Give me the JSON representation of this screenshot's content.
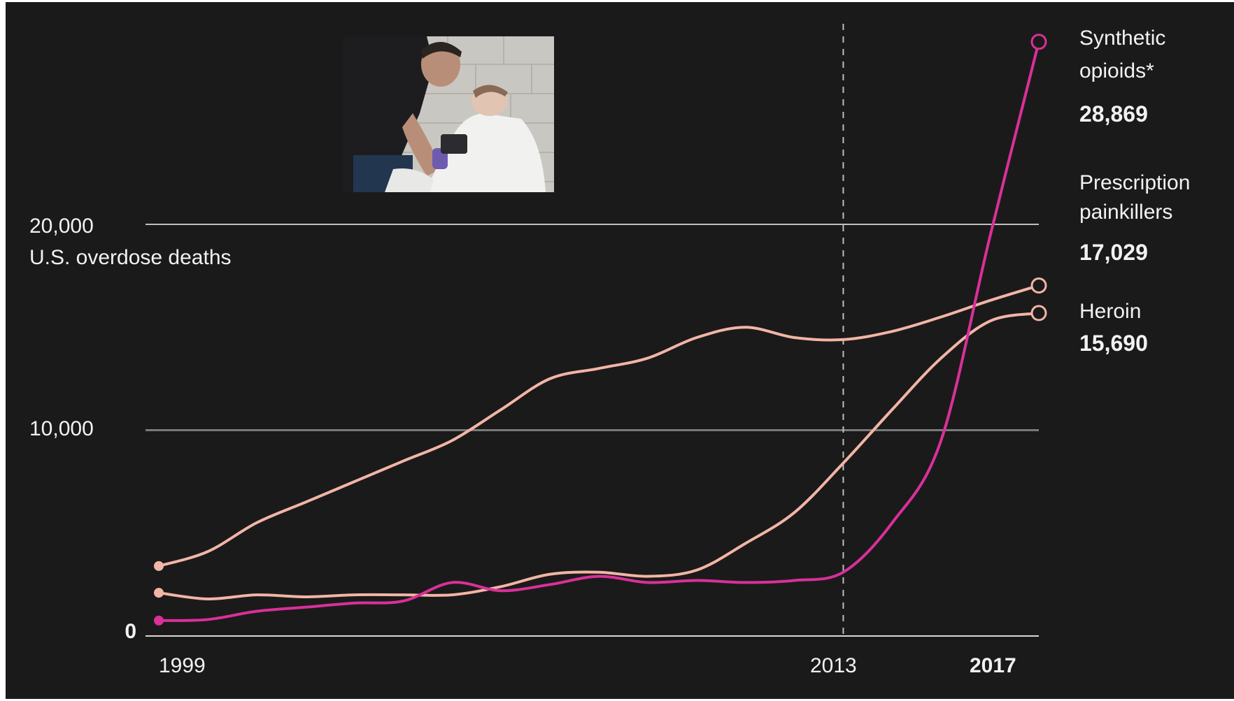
{
  "chart_data": {
    "type": "line",
    "title": "",
    "ylabel": "U.S. overdose deaths",
    "xlim": [
      1999,
      2017
    ],
    "ylim": [
      0,
      20000
    ],
    "y_ticks": [
      {
        "value": 0,
        "label": "0"
      },
      {
        "value": 10000,
        "label": "10,000"
      },
      {
        "value": 20000,
        "label": "20,000"
      }
    ],
    "x_ticks": [
      {
        "value": 1999,
        "label": "1999",
        "bold": false
      },
      {
        "value": 2013,
        "label": "2013",
        "bold": false
      },
      {
        "value": 2017,
        "label": "2017",
        "bold": true
      }
    ],
    "marker_year": 2013,
    "grid": true,
    "x": [
      1999,
      2000,
      2001,
      2002,
      2003,
      2004,
      2005,
      2006,
      2007,
      2008,
      2009,
      2010,
      2011,
      2012,
      2013,
      2014,
      2015,
      2016,
      2017
    ],
    "series": [
      {
        "name_lines": [
          "Prescription",
          "painkillers"
        ],
        "end_value": "17,029",
        "color": "#f2b5a6",
        "values": [
          3400,
          4100,
          5500,
          6500,
          7500,
          8500,
          9500,
          11000,
          12500,
          13000,
          13500,
          14500,
          15000,
          14500,
          14400,
          14800,
          15500,
          16300,
          17029
        ]
      },
      {
        "name_lines": [
          "Heroin"
        ],
        "end_value": "15,690",
        "color": "#f2b5a6",
        "values": [
          2100,
          1800,
          2000,
          1900,
          2000,
          2000,
          2000,
          2400,
          3000,
          3100,
          2900,
          3200,
          4500,
          6000,
          8400,
          11000,
          13500,
          15300,
          15690
        ]
      },
      {
        "name_lines": [
          "Synthetic",
          "opioids*"
        ],
        "end_value": "28,869",
        "color": "#d9309a",
        "values": [
          750,
          800,
          1200,
          1400,
          1600,
          1700,
          2600,
          2200,
          2500,
          2900,
          2600,
          2700,
          2600,
          2700,
          3100,
          5500,
          9500,
          19400,
          28869
        ]
      }
    ]
  }
}
